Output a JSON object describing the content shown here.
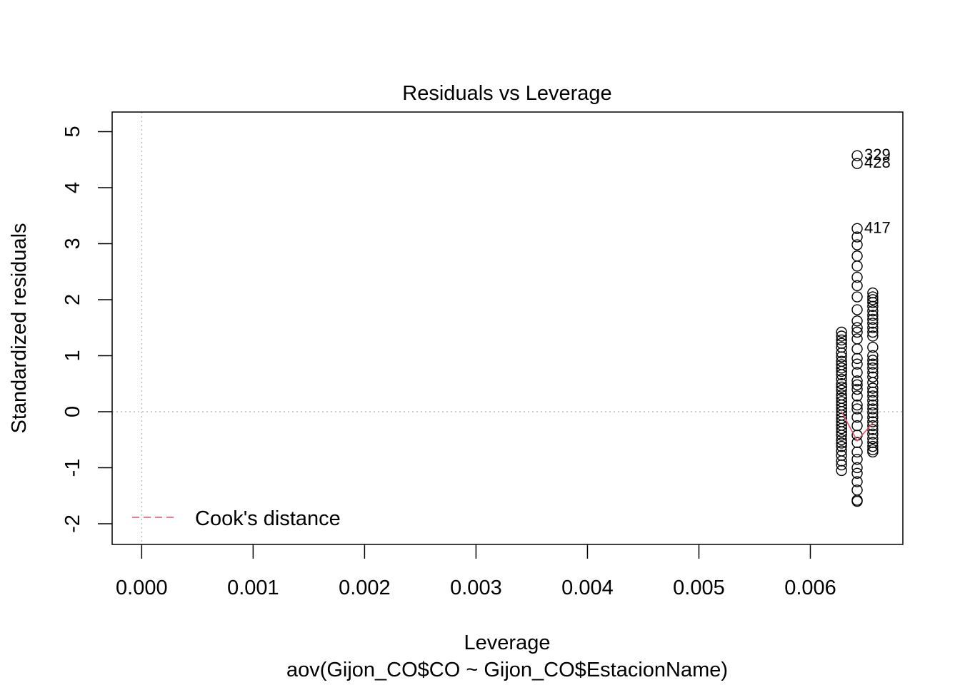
{
  "chart_data": {
    "type": "scatter",
    "title": "Residuals vs Leverage",
    "xlabel": "Leverage",
    "subtitle": "aov(Gijon_CO$CO ~ Gijon_CO$EstacionName)",
    "ylabel": "Standardized residuals",
    "xlim": [
      -0.000265,
      0.00683
    ],
    "ylim": [
      -2.37,
      5.35
    ],
    "x_ticks": [
      0.0,
      0.001,
      0.002,
      0.003,
      0.004,
      0.005,
      0.006
    ],
    "x_tick_labels": [
      "0.000",
      "0.001",
      "0.002",
      "0.003",
      "0.004",
      "0.005",
      "0.006"
    ],
    "y_ticks": [
      -2,
      -1,
      0,
      1,
      2,
      3,
      4,
      5
    ],
    "y_tick_labels": [
      "-2",
      "-1",
      "0",
      "1",
      "2",
      "3",
      "4",
      "5"
    ],
    "grid": false,
    "reference_lines": {
      "x": 0,
      "y": 0,
      "style": "dotted",
      "color": "#bebebe"
    },
    "legend": {
      "position": "bottom-left",
      "label": "Cook's distance",
      "style": "dashed",
      "color": "#DF536B"
    },
    "series": [
      {
        "x": 0.00628,
        "values": [
          1.42,
          1.35,
          1.28,
          1.22,
          1.15,
          1.05,
          0.98,
          0.9,
          0.84,
          0.78,
          0.72,
          0.66,
          0.58,
          0.5,
          0.44,
          0.38,
          0.3,
          0.24,
          0.18,
          0.12,
          0.06,
          0.0,
          -0.06,
          -0.12,
          -0.18,
          -0.24,
          -0.3,
          -0.36,
          -0.42,
          -0.5,
          -0.56,
          -0.62,
          -0.7,
          -0.78,
          -0.88,
          -0.95,
          -1.05
        ]
      },
      {
        "x": 0.00642,
        "values": [
          4.57,
          4.43,
          3.27,
          3.12,
          2.98,
          2.78,
          2.6,
          2.4,
          2.25,
          2.05,
          1.82,
          1.62,
          1.5,
          1.42,
          1.3,
          1.12,
          0.95,
          0.85,
          0.7,
          0.55,
          0.48,
          0.4,
          0.28,
          0.12,
          0.05,
          -0.1,
          -0.25,
          -0.42,
          -0.55,
          -0.72,
          -0.85,
          -1.0,
          -1.1,
          -1.25,
          -1.4,
          -1.58,
          -1.6
        ]
      },
      {
        "x": 0.00656,
        "values": [
          2.12,
          2.05,
          2.0,
          1.95,
          1.88,
          1.8,
          1.72,
          1.65,
          1.58,
          1.5,
          1.42,
          1.35,
          1.15,
          1.0,
          0.92,
          0.85,
          0.78,
          0.7,
          0.62,
          0.52,
          0.42,
          0.35,
          0.28,
          0.2,
          0.12,
          0.05,
          -0.02,
          -0.1,
          -0.18,
          -0.25,
          -0.32,
          -0.4,
          -0.48,
          -0.55,
          -0.62,
          -0.68,
          -0.72
        ]
      }
    ],
    "cooks_curve": {
      "x": [
        0.00628,
        0.00642,
        0.00656
      ],
      "y": [
        0.0,
        -0.52,
        -0.2
      ]
    },
    "labelled_points": [
      {
        "label": "329",
        "x": 0.00642,
        "y": 4.57
      },
      {
        "label": "428",
        "x": 0.00642,
        "y": 4.43
      },
      {
        "label": "417",
        "x": 0.00642,
        "y": 3.27
      }
    ]
  }
}
